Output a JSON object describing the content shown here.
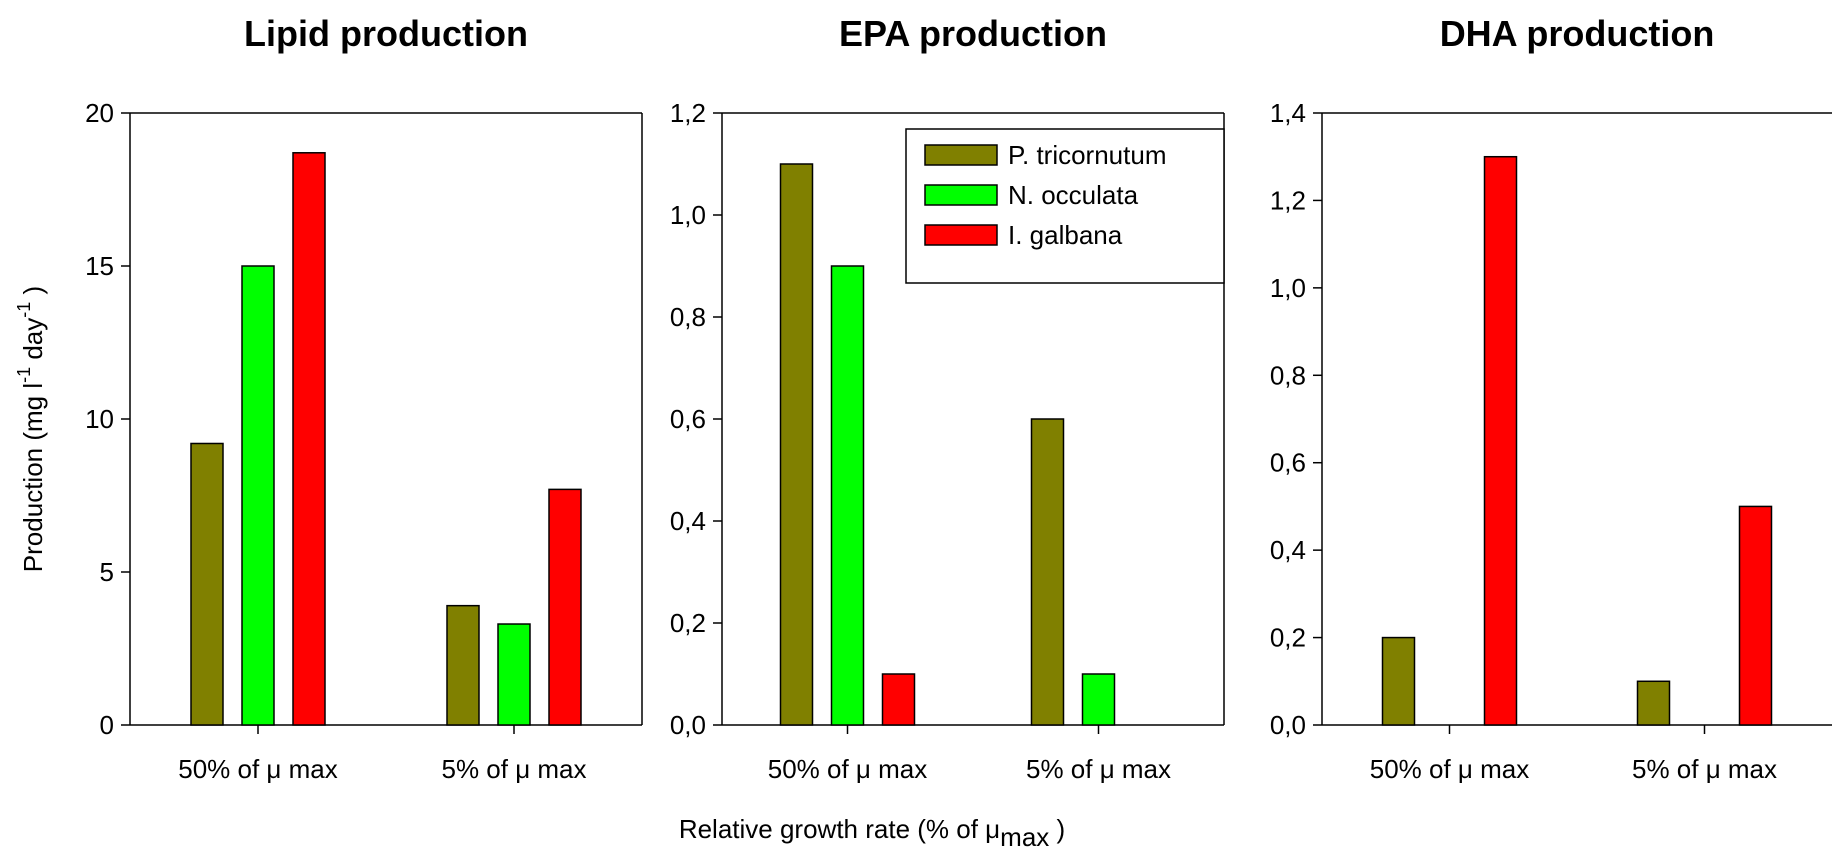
{
  "legend": {
    "placement": "top-right",
    "items": [
      {
        "name": "P. tricornutum",
        "color": "#808000"
      },
      {
        "name": "N. occulata",
        "color": "#00ff00"
      },
      {
        "name": "I. galbana",
        "color": "#ff0000"
      }
    ]
  },
  "shared": {
    "xlabel": "Relative growth rate (% of μ",
    "xlabel_sub": "max",
    "xlabel_end": " )",
    "ylabel": "Production (mg l",
    "ylabel_sup1": "-1",
    "ylabel_mid": " day",
    "ylabel_sup2": "-1",
    "ylabel_end": " )"
  },
  "chart_data": [
    {
      "type": "bar",
      "title": "Lipid production",
      "categories": [
        "50% of μ max",
        "5% of μ max"
      ],
      "series": [
        {
          "name": "P. tricornutum",
          "values": [
            9.2,
            3.9
          ]
        },
        {
          "name": "N. occulata",
          "values": [
            15.0,
            3.3
          ]
        },
        {
          "name": "I. galbana",
          "values": [
            18.7,
            7.7
          ]
        }
      ],
      "ylim": [
        0,
        20
      ],
      "yticks": [
        "0",
        "5",
        "10",
        "15",
        "20"
      ],
      "ytick_values": [
        0,
        5,
        10,
        15,
        20
      ],
      "grid": false
    },
    {
      "type": "bar",
      "title": "EPA production",
      "categories": [
        "50% of μ max",
        "5% of μ max"
      ],
      "series": [
        {
          "name": "P. tricornutum",
          "values": [
            1.1,
            0.6
          ]
        },
        {
          "name": "N. occulata",
          "values": [
            0.9,
            0.1
          ]
        },
        {
          "name": "I. galbana",
          "values": [
            0.1,
            0.0
          ]
        }
      ],
      "ylim": [
        0,
        1.2
      ],
      "yticks": [
        "0,0",
        "0,2",
        "0,4",
        "0,6",
        "0,8",
        "1,0",
        "1,2"
      ],
      "ytick_values": [
        0,
        0.2,
        0.4,
        0.6,
        0.8,
        1.0,
        1.2
      ],
      "grid": false
    },
    {
      "type": "bar",
      "title": "DHA production",
      "categories": [
        "50% of μ max",
        "5% of μ max"
      ],
      "series": [
        {
          "name": "P. tricornutum",
          "values": [
            0.2,
            0.1
          ]
        },
        {
          "name": "N. occulata",
          "values": [
            0.0,
            0.0
          ]
        },
        {
          "name": "I. galbana",
          "values": [
            1.3,
            0.5
          ]
        }
      ],
      "ylim": [
        0,
        1.4
      ],
      "yticks": [
        "0,0",
        "0,2",
        "0,4",
        "0,6",
        "0,8",
        "1,0",
        "1,2",
        "1,4"
      ],
      "ytick_values": [
        0,
        0.2,
        0.4,
        0.6,
        0.8,
        1.0,
        1.2,
        1.4
      ],
      "grid": false
    }
  ]
}
